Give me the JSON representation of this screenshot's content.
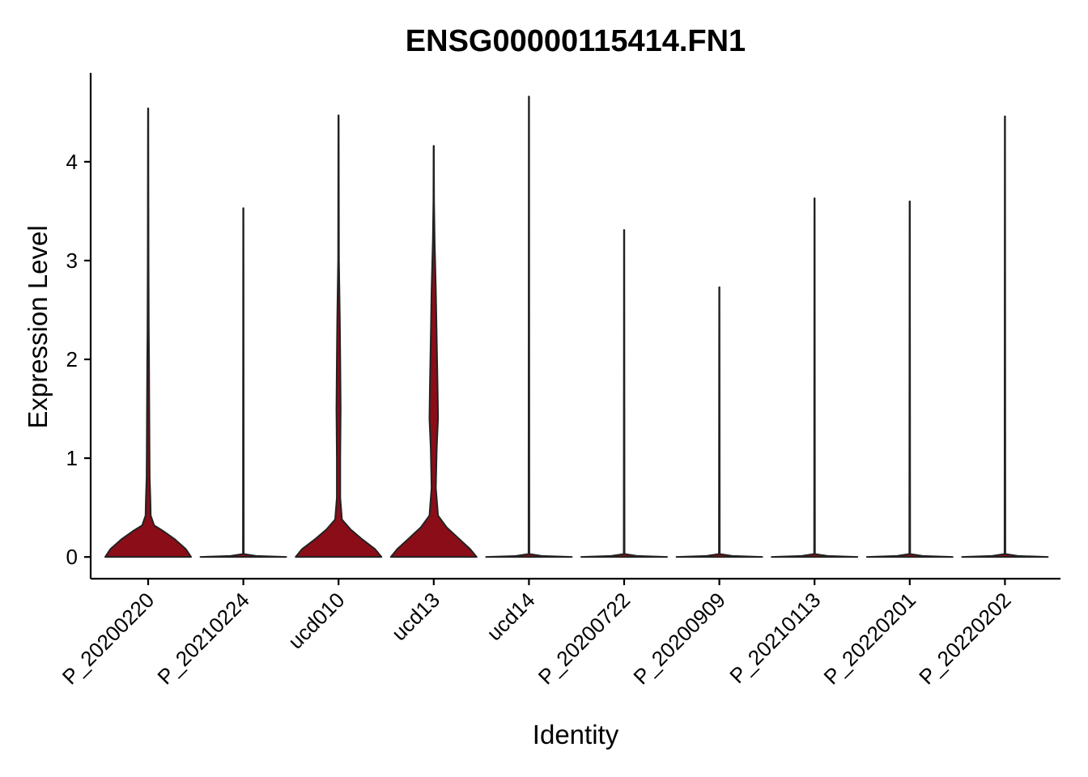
{
  "chart_data": {
    "type": "violin",
    "title": "ENSG00000115414.FN1",
    "xlabel": "Identity",
    "ylabel": "Expression Level",
    "ylim": [
      -0.22,
      4.9
    ],
    "yticks": [
      0,
      1,
      2,
      3,
      4
    ],
    "grid": false,
    "legend": "none",
    "fill_color": "#8B0D17",
    "categories": [
      "P_20200220",
      "P_20210224",
      "ucd010",
      "ucd13",
      "ucd14",
      "P_20200722",
      "P_20200909",
      "P_20210113",
      "P_20220201",
      "P_20220202"
    ],
    "series": [
      {
        "category": "P_20200220",
        "max": 4.54,
        "density": [
          [
            0,
            1.0
          ],
          [
            0.08,
            0.88
          ],
          [
            0.18,
            0.62
          ],
          [
            0.26,
            0.36
          ],
          [
            0.32,
            0.14
          ],
          [
            0.42,
            0.06
          ],
          [
            0.6,
            0.05
          ],
          [
            0.8,
            0.035
          ],
          [
            1.2,
            0.03
          ],
          [
            2.0,
            0.02
          ],
          [
            2.3,
            0.015
          ],
          [
            3.0,
            0.01
          ],
          [
            4.54,
            0.003
          ]
        ]
      },
      {
        "category": "P_20210224",
        "max": 3.53,
        "density": [
          [
            0,
            1.0
          ],
          [
            0.01,
            0.3
          ],
          [
            0.03,
            0.01
          ],
          [
            3.53,
            0.004
          ]
        ]
      },
      {
        "category": "ucd010",
        "max": 4.47,
        "density": [
          [
            0,
            1.0
          ],
          [
            0.08,
            0.85
          ],
          [
            0.18,
            0.55
          ],
          [
            0.28,
            0.28
          ],
          [
            0.38,
            0.08
          ],
          [
            0.6,
            0.04
          ],
          [
            1.0,
            0.04
          ],
          [
            1.5,
            0.05
          ],
          [
            2.0,
            0.04
          ],
          [
            2.4,
            0.03
          ],
          [
            3.0,
            0.01
          ],
          [
            4.47,
            0.003
          ]
        ]
      },
      {
        "category": "ucd13",
        "max": 4.16,
        "density": [
          [
            0,
            1.0
          ],
          [
            0.08,
            0.85
          ],
          [
            0.18,
            0.6
          ],
          [
            0.3,
            0.3
          ],
          [
            0.42,
            0.1
          ],
          [
            0.7,
            0.05
          ],
          [
            1.1,
            0.07
          ],
          [
            1.4,
            0.1
          ],
          [
            1.7,
            0.09
          ],
          [
            2.2,
            0.07
          ],
          [
            2.7,
            0.05
          ],
          [
            3.2,
            0.02
          ],
          [
            3.6,
            0.008
          ],
          [
            4.16,
            0.003
          ]
        ]
      },
      {
        "category": "ucd14",
        "max": 4.66,
        "density": [
          [
            0,
            1.0
          ],
          [
            0.01,
            0.3
          ],
          [
            0.03,
            0.01
          ],
          [
            4.66,
            0.004
          ]
        ]
      },
      {
        "category": "P_20200722",
        "max": 3.31,
        "density": [
          [
            0,
            1.0
          ],
          [
            0.01,
            0.3
          ],
          [
            0.03,
            0.01
          ],
          [
            3.31,
            0.004
          ]
        ]
      },
      {
        "category": "P_20200909",
        "max": 2.73,
        "density": [
          [
            0,
            1.0
          ],
          [
            0.01,
            0.3
          ],
          [
            0.03,
            0.01
          ],
          [
            2.73,
            0.004
          ]
        ]
      },
      {
        "category": "P_20210113",
        "max": 3.63,
        "density": [
          [
            0,
            1.0
          ],
          [
            0.01,
            0.3
          ],
          [
            0.03,
            0.01
          ],
          [
            3.63,
            0.004
          ]
        ]
      },
      {
        "category": "P_20220201",
        "max": 3.6,
        "density": [
          [
            0,
            1.0
          ],
          [
            0.01,
            0.3
          ],
          [
            0.03,
            0.01
          ],
          [
            3.6,
            0.004
          ]
        ]
      },
      {
        "category": "P_20220202",
        "max": 4.46,
        "density": [
          [
            0,
            1.0
          ],
          [
            0.01,
            0.3
          ],
          [
            0.03,
            0.01
          ],
          [
            4.46,
            0.004
          ]
        ]
      }
    ]
  }
}
